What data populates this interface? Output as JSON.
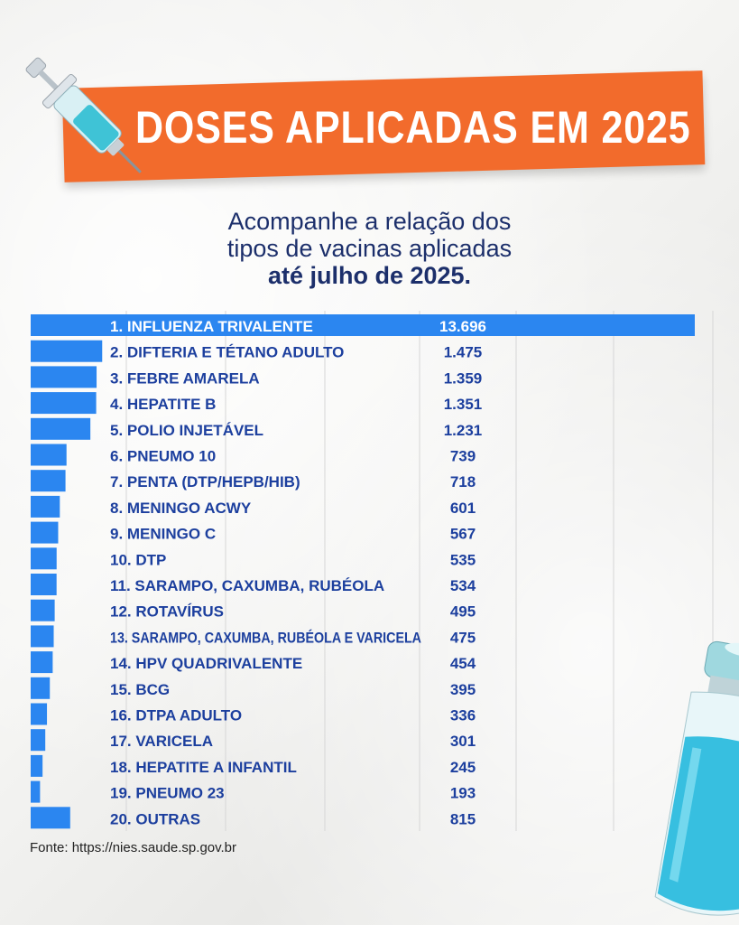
{
  "header": {
    "title": "DOSES APLICADAS EM 2025",
    "subtitle_line1": "Acompanhe a relação dos",
    "subtitle_line2": "tipos de vacinas aplicadas",
    "subtitle_line3": "até julho de 2025."
  },
  "colors": {
    "bar": "#2b86f0",
    "banner": "#f26b2c",
    "label": "#1c3f9e",
    "grid": "#d6d6d6"
  },
  "icons": {
    "syringe": "syringe-icon",
    "vial": "vaccine-vial-icon"
  },
  "chart_data": {
    "type": "bar",
    "orientation": "horizontal",
    "categories": [
      "1. INFLUENZA TRIVALENTE",
      "2. DIFTERIA E TÉTANO ADULTO",
      "3. FEBRE AMARELA",
      "4. HEPATITE B",
      "5. POLIO INJETÁVEL",
      "6. PNEUMO 10",
      "7. PENTA (DTP/HEPB/HIB)",
      "8. MENINGO ACWY",
      "9. MENINGO C",
      "10. DTP",
      "11. SARAMPO, CAXUMBA, RUBÉOLA",
      "12. ROTAVÍRUS",
      "13. SARAMPO, CAXUMBA, RUBÉOLA E VARICELA",
      "14. HPV QUADRIVALENTE",
      "15. BCG",
      "16. DTPA ADULTO",
      "17. VARICELA",
      "18. HEPATITE A INFANTIL",
      "19. PNEUMO 23",
      "20. OUTRAS"
    ],
    "values": [
      13696,
      1475,
      1359,
      1351,
      1231,
      739,
      718,
      601,
      567,
      535,
      534,
      495,
      475,
      454,
      395,
      336,
      301,
      245,
      193,
      815
    ],
    "value_labels": [
      "13.696",
      "1.475",
      "1.359",
      "1.351",
      "1.231",
      "739",
      "718",
      "601",
      "567",
      "535",
      "534",
      "495",
      "475",
      "454",
      "395",
      "336",
      "301",
      "245",
      "193",
      "815"
    ],
    "xlim": [
      0,
      13696
    ],
    "grid": true,
    "legend": "none"
  },
  "footer": {
    "source": "Fonte: https://nies.saude.sp.gov.br"
  }
}
